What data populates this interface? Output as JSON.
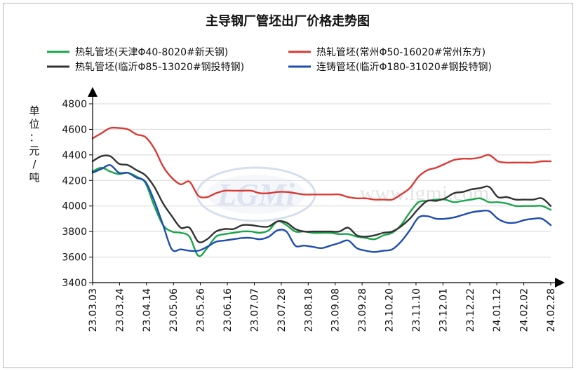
{
  "chart_data": {
    "type": "line",
    "title": "主导钢厂管坯出厂价格走势图",
    "ylabel": "单位：元/吨",
    "xlabel": "",
    "ylim": [
      3400,
      4800
    ],
    "yticks": [
      3400,
      3600,
      3800,
      4000,
      4200,
      4400,
      4600,
      4800
    ],
    "grid": true,
    "legend_position": "top",
    "watermark": "LGMi www.lgmi.com",
    "xtick_labels": [
      "23.03.03",
      "23.03.24",
      "23.04.14",
      "23.05.06",
      "23.05.26",
      "23.06.16",
      "23.07.07",
      "23.07.28",
      "23.08.18",
      "23.09.08",
      "23.09.28",
      "23.10.20",
      "23.11.10",
      "23.12.01",
      "23.12.22",
      "24.01.12",
      "24.02.02",
      "24.02.28"
    ],
    "x": [
      "23.03.03",
      "23.03.10",
      "23.03.17",
      "23.03.24",
      "23.03.31",
      "23.04.07",
      "23.04.14",
      "23.04.21",
      "23.04.28",
      "23.05.06",
      "23.05.12",
      "23.05.19",
      "23.05.26",
      "23.06.02",
      "23.06.09",
      "23.06.16",
      "23.06.23",
      "23.06.30",
      "23.07.07",
      "23.07.14",
      "23.07.21",
      "23.07.28",
      "23.08.04",
      "23.08.11",
      "23.08.18",
      "23.08.25",
      "23.09.01",
      "23.09.08",
      "23.09.15",
      "23.09.22",
      "23.09.28",
      "23.10.06",
      "23.10.13",
      "23.10.20",
      "23.10.27",
      "23.11.03",
      "23.11.10",
      "23.11.17",
      "23.11.24",
      "23.12.01",
      "23.12.08",
      "23.12.15",
      "23.12.22",
      "23.12.29",
      "24.01.05",
      "24.01.12",
      "24.01.19",
      "24.01.26",
      "24.02.02",
      "24.02.09",
      "24.02.16",
      "24.02.23",
      "24.02.28"
    ],
    "series": [
      {
        "name": "热轧管坯(天津Φ40-8020#新天钢)",
        "color": "#1aa64a",
        "values": [
          4270,
          4300,
          4270,
          4250,
          4260,
          4230,
          4180,
          4000,
          3850,
          3800,
          3790,
          3760,
          3610,
          3670,
          3760,
          3780,
          3790,
          3800,
          3800,
          3790,
          3810,
          3880,
          3850,
          3800,
          3800,
          3790,
          3790,
          3790,
          3780,
          3780,
          3760,
          3750,
          3740,
          3770,
          3790,
          3850,
          3950,
          4030,
          4040,
          4050,
          4050,
          4030,
          4040,
          4050,
          4060,
          4030,
          4030,
          4020,
          4000,
          4000,
          4000,
          4000,
          3970
        ]
      },
      {
        "name": "热轧管坯(常州Φ50-16020#常州东方)",
        "color": "#d93b35",
        "values": [
          4530,
          4570,
          4610,
          4610,
          4600,
          4560,
          4540,
          4450,
          4310,
          4220,
          4170,
          4190,
          4080,
          4070,
          4100,
          4120,
          4120,
          4120,
          4120,
          4100,
          4100,
          4110,
          4110,
          4100,
          4090,
          4090,
          4090,
          4090,
          4090,
          4070,
          4060,
          4060,
          4050,
          4050,
          4050,
          4090,
          4140,
          4230,
          4280,
          4300,
          4330,
          4360,
          4370,
          4370,
          4380,
          4400,
          4350,
          4340,
          4340,
          4340,
          4340,
          4350,
          4350
        ]
      },
      {
        "name": "热轧管坯(临沂Φ85-13020#钢投特钢)",
        "color": "#333333",
        "values": [
          4350,
          4390,
          4390,
          4330,
          4320,
          4280,
          4240,
          4150,
          4020,
          3920,
          3830,
          3830,
          3720,
          3740,
          3800,
          3820,
          3820,
          3850,
          3850,
          3840,
          3840,
          3880,
          3870,
          3820,
          3800,
          3800,
          3800,
          3800,
          3800,
          3830,
          3770,
          3760,
          3770,
          3790,
          3800,
          3840,
          3900,
          3980,
          4040,
          4040,
          4060,
          4100,
          4110,
          4130,
          4140,
          4150,
          4070,
          4070,
          4050,
          4050,
          4050,
          4060,
          4000
        ]
      },
      {
        "name": "连铸管坯(临沂Φ180-31020#钢投特钢)",
        "color": "#1f4db0",
        "values": [
          4260,
          4290,
          4320,
          4260,
          4260,
          4220,
          4190,
          4040,
          3850,
          3660,
          3660,
          3650,
          3650,
          3680,
          3720,
          3730,
          3740,
          3750,
          3750,
          3740,
          3760,
          3810,
          3800,
          3690,
          3690,
          3680,
          3670,
          3690,
          3710,
          3730,
          3670,
          3650,
          3640,
          3650,
          3660,
          3720,
          3810,
          3910,
          3920,
          3900,
          3900,
          3910,
          3930,
          3950,
          3960,
          3960,
          3900,
          3870,
          3870,
          3890,
          3900,
          3900,
          3850
        ]
      }
    ]
  }
}
